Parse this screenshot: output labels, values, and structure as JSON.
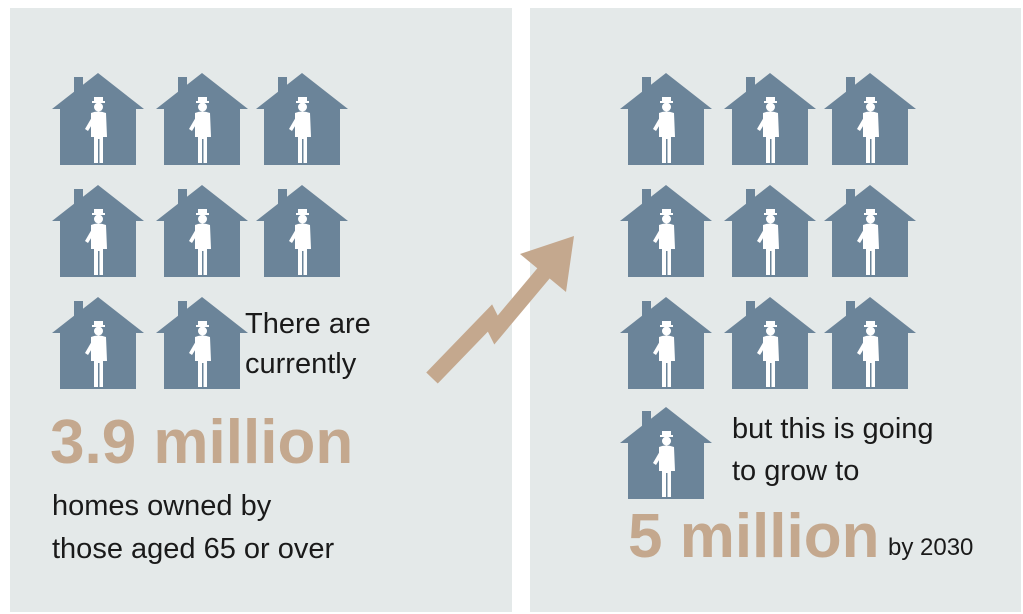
{
  "left": {
    "intro": [
      "There are",
      "currently"
    ],
    "figure": "3.9 million",
    "caption": [
      "homes owned by",
      "those aged 65 or over"
    ]
  },
  "right": {
    "intro": [
      "but this is going",
      "to grow to"
    ],
    "figure": "5 million",
    "suffix": "by 2030"
  }
}
